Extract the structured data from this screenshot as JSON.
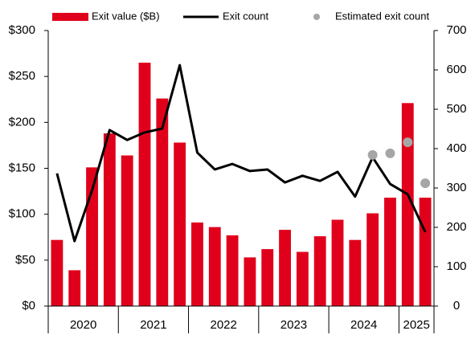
{
  "chart_data": {
    "type": "bar_line",
    "categories": [
      "2020",
      "2020",
      "2020",
      "2020",
      "2021",
      "2021",
      "2021",
      "2021",
      "2022",
      "2022",
      "2022",
      "2022",
      "2023",
      "2023",
      "2023",
      "2023",
      "2024",
      "2024",
      "2024",
      "2024",
      "2025",
      "2025"
    ],
    "series": [
      {
        "name": "Exit value ($B)",
        "type": "bar",
        "color": "#e0001b",
        "axis": "y",
        "values": [
          72,
          39,
          151,
          188,
          164,
          265,
          226,
          178,
          91,
          86,
          77,
          53,
          62,
          83,
          59,
          76,
          94,
          72,
          101,
          118,
          221,
          118
        ]
      },
      {
        "name": "Exit count",
        "type": "line",
        "color": "#000000",
        "axis": "y2",
        "values": [
          337,
          165,
          294,
          447,
          422,
          441,
          451,
          612,
          390,
          347,
          361,
          343,
          347,
          314,
          331,
          318,
          341,
          278,
          378,
          310,
          284,
          188
        ]
      },
      {
        "name": "Estimated exit count",
        "type": "scatter",
        "color": "#a6a6a6",
        "axis": "y2",
        "values": [
          null,
          null,
          null,
          null,
          null,
          null,
          null,
          null,
          null,
          null,
          null,
          null,
          null,
          null,
          null,
          null,
          null,
          null,
          384,
          388,
          416,
          312
        ]
      }
    ],
    "ylim": [
      0,
      300
    ],
    "yticks": [
      {
        "value": 0,
        "label": "$0"
      },
      {
        "value": 50,
        "label": "$50"
      },
      {
        "value": 100,
        "label": "$100"
      },
      {
        "value": 150,
        "label": "$150"
      },
      {
        "value": 200,
        "label": "$200"
      },
      {
        "value": 250,
        "label": "$250"
      },
      {
        "value": 300,
        "label": "$300"
      }
    ],
    "y2lim": [
      0,
      700
    ],
    "y2ticks": [
      0,
      100,
      200,
      300,
      400,
      500,
      600,
      700
    ],
    "grid": false
  }
}
